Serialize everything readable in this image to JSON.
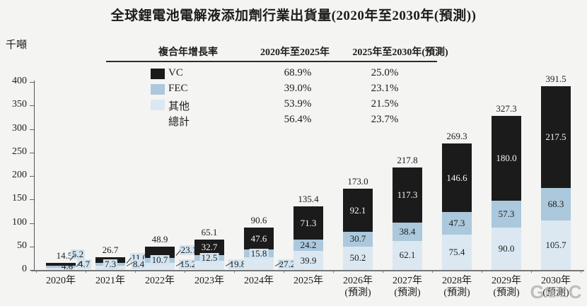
{
  "title": "全球鋰電池電解液添加劑行業出貨量(2020年至2030年(預測))",
  "y_axis_unit": "千噸",
  "cagr_table": {
    "col_headers": [
      "複合年增長率",
      "2020年至2025年",
      "2025年至2030年(預測)"
    ],
    "rows": [
      {
        "series": "vc",
        "label": "VC",
        "cagr_2020_2025": "68.9%",
        "cagr_2025_2030": "25.0%"
      },
      {
        "series": "fec",
        "label": "FEC",
        "cagr_2020_2025": "39.0%",
        "cagr_2025_2030": "23.1%"
      },
      {
        "series": "other",
        "label": "其他",
        "cagr_2020_2025": "53.9%",
        "cagr_2025_2030": "21.5%"
      },
      {
        "series": "total",
        "label": "總計",
        "cagr_2020_2025": "56.4%",
        "cagr_2025_2030": "23.7%"
      }
    ]
  },
  "colors": {
    "vc": "#1b1b1b",
    "fec": "#abc8dc",
    "other": "#dbe8f2",
    "label_box": "#d3e4f0",
    "axis": "#777777"
  },
  "watermark": {
    "bracket_left": "G",
    "label": "隆汇",
    "bracket_right": "C"
  },
  "chart_data": {
    "type": "bar",
    "stacked": true,
    "title": "全球鋰電池電解液添加劑行業出貨量(2020年至2030年(預測))",
    "ylabel": "千噸",
    "ylim": [
      0,
      400
    ],
    "yticks": [
      0,
      50,
      100,
      150,
      200,
      250,
      300,
      350,
      400
    ],
    "grid": false,
    "legend_position": "top-left-table",
    "categories": [
      "2020年",
      "2021年",
      "2022年",
      "2023年",
      "2024年",
      "2025年",
      "2026年",
      "2027年",
      "2028年",
      "2029年",
      "2030年"
    ],
    "category_notes": [
      "",
      "",
      "",
      "",
      "",
      "",
      "(預測)",
      "(預測)",
      "(預測)",
      "(預測)",
      "(預測)"
    ],
    "series": [
      {
        "key": "other",
        "name": "其他",
        "values": [
          4.6,
          8.4,
          15.2,
          19.8,
          27.2,
          39.9,
          50.2,
          62.1,
          75.4,
          90.0,
          105.7
        ]
      },
      {
        "key": "fec",
        "name": "FEC",
        "values": [
          4.7,
          7.3,
          10.7,
          12.5,
          15.8,
          24.2,
          30.7,
          38.4,
          47.3,
          57.3,
          68.3
        ]
      },
      {
        "key": "vc",
        "name": "VC",
        "values": [
          5.2,
          11.0,
          23.1,
          32.7,
          47.6,
          71.3,
          92.1,
          117.3,
          146.6,
          180.0,
          217.5
        ]
      }
    ],
    "totals": [
      14.5,
      26.7,
      48.9,
      65.1,
      90.6,
      135.4,
      173.0,
      217.8,
      269.3,
      327.3,
      391.5
    ]
  }
}
